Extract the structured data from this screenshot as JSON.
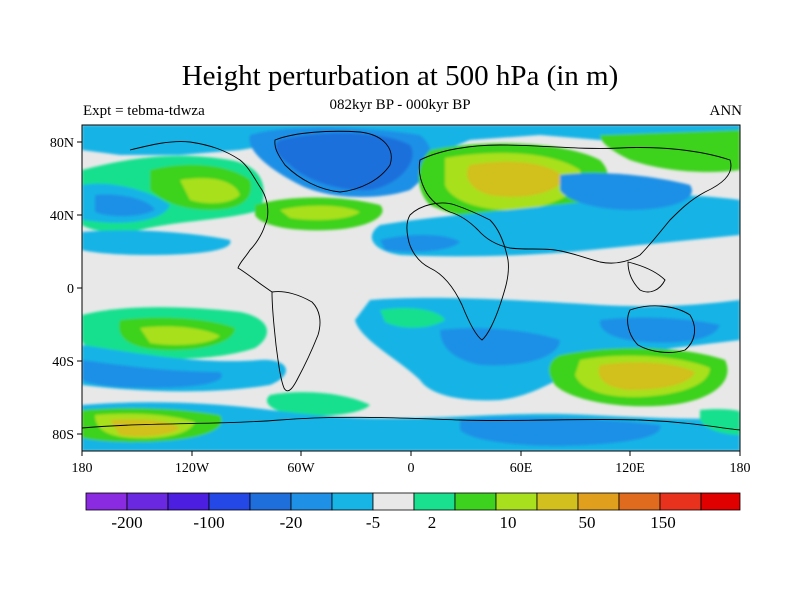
{
  "title": "Height perturbation at 500 hPa (in m)",
  "subtitle_left": "Expt = tebma-tdwza",
  "subtitle_center": "082kyr BP - 000kyr BP",
  "subtitle_right": "ANN",
  "axes": {
    "x_ticks": [
      "180",
      "120W",
      "60W",
      "0",
      "60E",
      "120E",
      "180"
    ],
    "y_ticks": [
      "80N",
      "40N",
      "0",
      "40S",
      "80S"
    ]
  },
  "colorbar": {
    "colors": [
      "#8a2be2",
      "#6a28e0",
      "#4b1ee0",
      "#2448e6",
      "#1e6fdc",
      "#1e90e6",
      "#17b4e6",
      "#e8e8e8",
      "#19e08e",
      "#3cd21e",
      "#a8e01e",
      "#d2c01e",
      "#e0a01e",
      "#e06a1e",
      "#e8321e",
      "#e00000"
    ],
    "labels": [
      "-200",
      "-100",
      "-20",
      "-5",
      "2",
      "10",
      "50",
      "150"
    ]
  },
  "colors": {
    "background": "#e8e8e8",
    "coast": "#000000"
  }
}
